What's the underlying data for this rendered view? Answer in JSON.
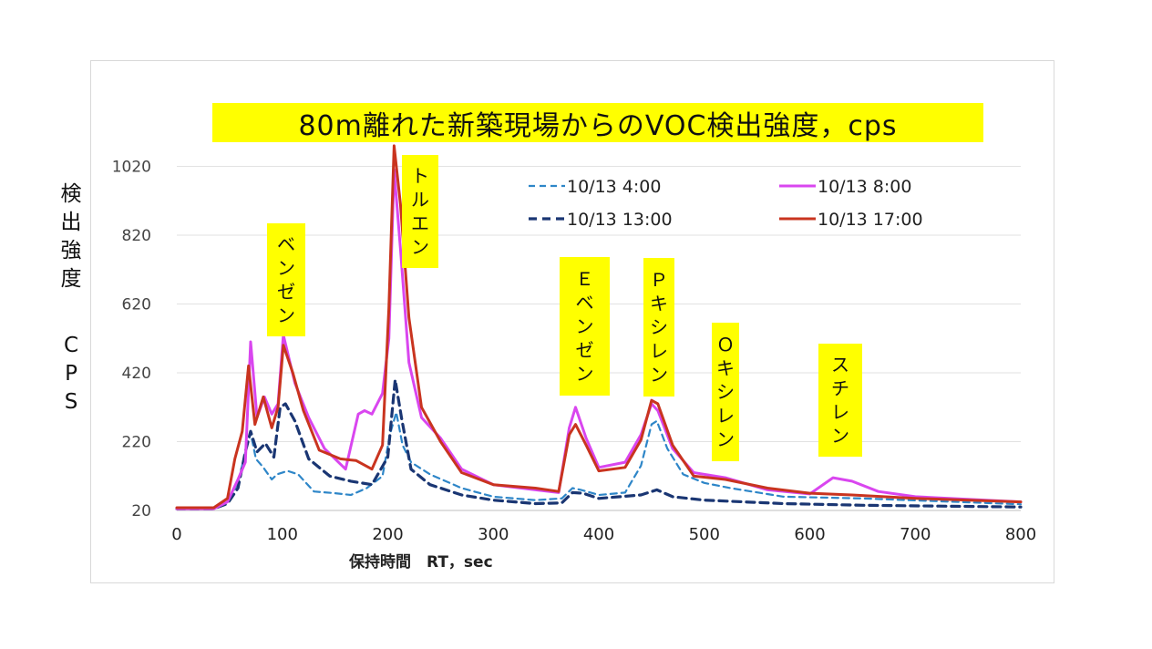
{
  "chart_data": {
    "type": "line",
    "title": "80m離れた新築現場からのVOC検出強度，cps",
    "ylabel_chars": [
      "検",
      "出",
      "強",
      "度",
      "",
      "C",
      "P",
      "S"
    ],
    "xlabel": "保持時間　RT，sec",
    "xlim": [
      0,
      800
    ],
    "ylim": [
      20,
      1120
    ],
    "xticks": [
      "0",
      "100",
      "200",
      "300",
      "400",
      "500",
      "600",
      "700",
      "800"
    ],
    "yticks": [
      "20",
      "220",
      "420",
      "620",
      "820",
      "1020"
    ],
    "grid": "horizontal",
    "legend_position": "top-right",
    "series": [
      {
        "name": "10/13 4:00",
        "color": "#2e86c8",
        "dash": "dashed",
        "points": [
          [
            0,
            28
          ],
          [
            35,
            28
          ],
          [
            48,
            45
          ],
          [
            58,
            100
          ],
          [
            65,
            190
          ],
          [
            70,
            245
          ],
          [
            75,
            170
          ],
          [
            82,
            145
          ],
          [
            90,
            110
          ],
          [
            95,
            125
          ],
          [
            105,
            135
          ],
          [
            115,
            125
          ],
          [
            130,
            75
          ],
          [
            150,
            70
          ],
          [
            165,
            65
          ],
          [
            180,
            85
          ],
          [
            195,
            120
          ],
          [
            202,
            240
          ],
          [
            208,
            305
          ],
          [
            214,
            210
          ],
          [
            222,
            160
          ],
          [
            240,
            125
          ],
          [
            270,
            85
          ],
          [
            300,
            60
          ],
          [
            340,
            50
          ],
          [
            365,
            55
          ],
          [
            375,
            85
          ],
          [
            383,
            80
          ],
          [
            400,
            65
          ],
          [
            425,
            72
          ],
          [
            440,
            150
          ],
          [
            450,
            270
          ],
          [
            455,
            280
          ],
          [
            465,
            200
          ],
          [
            480,
            125
          ],
          [
            500,
            100
          ],
          [
            525,
            85
          ],
          [
            575,
            60
          ],
          [
            650,
            55
          ],
          [
            800,
            38
          ]
        ]
      },
      {
        "name": "10/13 8:00",
        "color": "#d946ef",
        "dash": "solid",
        "points": [
          [
            0,
            25
          ],
          [
            35,
            25
          ],
          [
            48,
            45
          ],
          [
            58,
            110
          ],
          [
            65,
            160
          ],
          [
            70,
            510
          ],
          [
            76,
            290
          ],
          [
            83,
            350
          ],
          [
            90,
            300
          ],
          [
            96,
            330
          ],
          [
            101,
            530
          ],
          [
            112,
            390
          ],
          [
            125,
            290
          ],
          [
            140,
            200
          ],
          [
            160,
            140
          ],
          [
            172,
            300
          ],
          [
            178,
            310
          ],
          [
            185,
            300
          ],
          [
            195,
            360
          ],
          [
            201,
            520
          ],
          [
            206,
            1010
          ],
          [
            212,
            780
          ],
          [
            220,
            450
          ],
          [
            232,
            290
          ],
          [
            250,
            230
          ],
          [
            270,
            140
          ],
          [
            300,
            95
          ],
          [
            340,
            80
          ],
          [
            362,
            72
          ],
          [
            372,
            260
          ],
          [
            378,
            320
          ],
          [
            388,
            230
          ],
          [
            400,
            145
          ],
          [
            425,
            160
          ],
          [
            440,
            240
          ],
          [
            450,
            330
          ],
          [
            456,
            310
          ],
          [
            470,
            200
          ],
          [
            490,
            130
          ],
          [
            520,
            115
          ],
          [
            560,
            80
          ],
          [
            600,
            68
          ],
          [
            622,
            115
          ],
          [
            640,
            105
          ],
          [
            665,
            75
          ],
          [
            700,
            60
          ],
          [
            800,
            45
          ]
        ]
      },
      {
        "name": "10/13 13:00",
        "color": "#1a3673",
        "dash": "dashed-bold",
        "points": [
          [
            0,
            25
          ],
          [
            35,
            25
          ],
          [
            48,
            40
          ],
          [
            58,
            85
          ],
          [
            65,
            190
          ],
          [
            70,
            250
          ],
          [
            76,
            190
          ],
          [
            84,
            215
          ],
          [
            92,
            175
          ],
          [
            98,
            320
          ],
          [
            103,
            330
          ],
          [
            112,
            280
          ],
          [
            125,
            170
          ],
          [
            145,
            120
          ],
          [
            165,
            105
          ],
          [
            185,
            95
          ],
          [
            200,
            175
          ],
          [
            207,
            400
          ],
          [
            213,
            290
          ],
          [
            222,
            140
          ],
          [
            240,
            95
          ],
          [
            270,
            65
          ],
          [
            300,
            50
          ],
          [
            340,
            40
          ],
          [
            365,
            42
          ],
          [
            375,
            72
          ],
          [
            385,
            70
          ],
          [
            400,
            55
          ],
          [
            440,
            65
          ],
          [
            455,
            80
          ],
          [
            470,
            60
          ],
          [
            500,
            50
          ],
          [
            575,
            40
          ],
          [
            650,
            35
          ],
          [
            800,
            30
          ]
        ]
      },
      {
        "name": "10/13 17:00",
        "color": "#c9341f",
        "dash": "solid",
        "points": [
          [
            0,
            28
          ],
          [
            35,
            28
          ],
          [
            48,
            55
          ],
          [
            55,
            170
          ],
          [
            62,
            250
          ],
          [
            68,
            440
          ],
          [
            74,
            270
          ],
          [
            82,
            350
          ],
          [
            90,
            260
          ],
          [
            96,
            320
          ],
          [
            101,
            500
          ],
          [
            110,
            420
          ],
          [
            120,
            310
          ],
          [
            135,
            195
          ],
          [
            155,
            170
          ],
          [
            170,
            165
          ],
          [
            185,
            140
          ],
          [
            195,
            210
          ],
          [
            201,
            610
          ],
          [
            206,
            1080
          ],
          [
            212,
            910
          ],
          [
            220,
            580
          ],
          [
            232,
            320
          ],
          [
            250,
            220
          ],
          [
            270,
            130
          ],
          [
            300,
            95
          ],
          [
            340,
            85
          ],
          [
            362,
            75
          ],
          [
            372,
            240
          ],
          [
            378,
            270
          ],
          [
            388,
            210
          ],
          [
            400,
            135
          ],
          [
            425,
            145
          ],
          [
            440,
            225
          ],
          [
            450,
            340
          ],
          [
            456,
            330
          ],
          [
            470,
            210
          ],
          [
            490,
            120
          ],
          [
            520,
            110
          ],
          [
            560,
            85
          ],
          [
            600,
            70
          ],
          [
            640,
            65
          ],
          [
            700,
            55
          ],
          [
            800,
            45
          ]
        ]
      }
    ],
    "peak_labels": [
      {
        "text": [
          "ベ",
          "ン",
          "ゼ",
          "ン"
        ]
      },
      {
        "text": [
          "ト",
          "ル",
          "エ",
          "ン"
        ]
      },
      {
        "text": [
          "Ｅ",
          "ベ",
          "ン",
          "ゼ",
          "ン"
        ]
      },
      {
        "text": [
          "Ｐ",
          "キ",
          "シ",
          "レ",
          "ン"
        ]
      },
      {
        "text": [
          "Ｏ",
          "キ",
          "シ",
          "レ",
          "ン"
        ]
      },
      {
        "text": [
          "ス",
          "チ",
          "レ",
          "ン"
        ]
      }
    ]
  }
}
